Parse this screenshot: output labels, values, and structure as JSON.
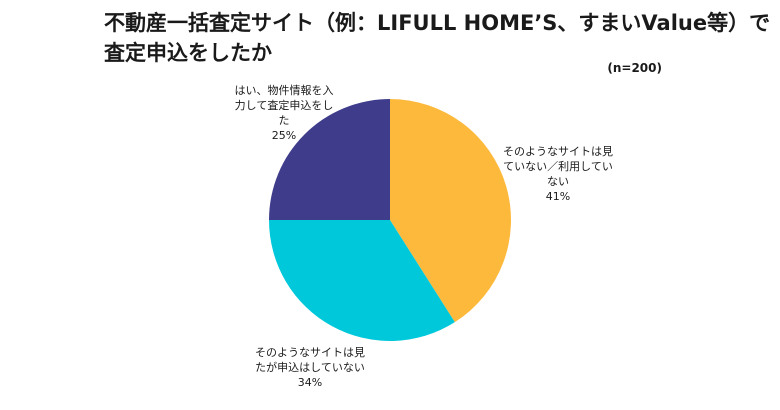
{
  "title_lines": [
    "不動産一括査定サイト（例：LIFULL HOME’S、すまいValue等）で",
    "査定申込をしたか"
  ],
  "sample_note": "(n=200)",
  "colors": {
    "not_seen": "#FDB93B",
    "seen_not_applied": "#00C8DB",
    "applied": "#3F3D8B"
  },
  "chart_data": {
    "type": "pie",
    "title": "不動産一括査定サイト（例：LIFULL HOME’S、すまいValue等）で査定申込をしたか",
    "n": 200,
    "slices": [
      {
        "label_lines": [
          "そのようなサイトは見",
          "ていない／利用してい",
          "ない"
        ],
        "value": 41,
        "value_text": "41%",
        "color": "#FDB93B"
      },
      {
        "label_lines": [
          "そのようなサイトは見",
          "たが申込はしていない"
        ],
        "value": 34,
        "value_text": "34%",
        "color": "#00C8DB"
      },
      {
        "label_lines": [
          "はい、物件情報を入",
          "力して査定申込をし",
          "た"
        ],
        "value": 25,
        "value_text": "25%",
        "color": "#3F3D8B"
      }
    ]
  }
}
